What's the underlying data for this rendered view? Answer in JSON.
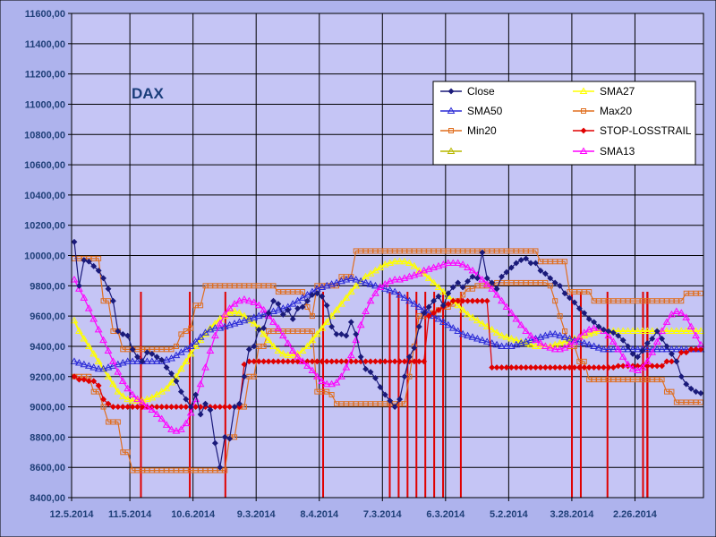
{
  "chart_data": {
    "type": "line",
    "title": "DAX",
    "ylim": [
      8400,
      11600
    ],
    "y_ticks": [
      "8400,00",
      "8600,00",
      "8800,00",
      "9000,00",
      "9200,00",
      "9400,00",
      "9600,00",
      "9800,00",
      "10000,00",
      "10200,00",
      "10400,00",
      "10600,00",
      "10800,00",
      "11000,00",
      "11200,00",
      "11400,00",
      "11600,00"
    ],
    "x_ticks": [
      "12.5.2014",
      "11.5.2014",
      "10.6.2014",
      "9.3.2014",
      "8.4.2014",
      "7.3.2014",
      "6.3.2014",
      "5.2.2014",
      "3.28.2014",
      "2.26.2014"
    ],
    "x_tick_positions": [
      0,
      12,
      25,
      38,
      51,
      64,
      77,
      90,
      103,
      116
    ],
    "n_points": 130,
    "grid": true,
    "legend_placement": "top-right",
    "colors": {
      "plot_background": "#c5c5f5",
      "figure_background": "#aeb3ed",
      "grid": "#000000"
    },
    "series": [
      {
        "name": "Close",
        "color": "#1a1a7a",
        "marker": "diamond",
        "values": [
          10090,
          9800,
          9970,
          9960,
          9930,
          9900,
          9850,
          9780,
          9700,
          9500,
          9480,
          9470,
          9380,
          9330,
          9300,
          9360,
          9350,
          9330,
          9310,
          9260,
          9220,
          9170,
          9100,
          9050,
          9000,
          9080,
          8950,
          9020,
          8980,
          8760,
          8600,
          8800,
          8790,
          9000,
          9020,
          9200,
          9380,
          9400,
          9510,
          9520,
          9620,
          9700,
          9680,
          9610,
          9640,
          9580,
          9650,
          9660,
          9700,
          9740,
          9750,
          9730,
          9670,
          9530,
          9480,
          9480,
          9470,
          9560,
          9480,
          9330,
          9250,
          9230,
          9190,
          9130,
          9080,
          9040,
          9000,
          9050,
          9200,
          9330,
          9390,
          9530,
          9620,
          9660,
          9700,
          9730,
          9670,
          9750,
          9790,
          9820,
          9790,
          9830,
          9860,
          9850,
          10020,
          9850,
          9820,
          9780,
          9860,
          9890,
          9920,
          9950,
          9970,
          9980,
          9950,
          9950,
          9900,
          9880,
          9850,
          9820,
          9800,
          9750,
          9720,
          9690,
          9650,
          9620,
          9580,
          9560,
          9530,
          9510,
          9500,
          9490,
          9470,
          9440,
          9400,
          9350,
          9330,
          9370,
          9420,
          9450,
          9500,
          9450,
          9400,
          9350,
          9300,
          9200,
          9150,
          9120,
          9100,
          9090
        ]
      },
      {
        "name": "SMA50",
        "color": "#2a2ad6",
        "marker": "triangle",
        "values": [
          9300,
          9290,
          9280,
          9270,
          9260,
          9250,
          9250,
          9260,
          9270,
          9280,
          9290,
          9300,
          9300,
          9300,
          9300,
          9300,
          9300,
          9300,
          9300,
          9310,
          9320,
          9340,
          9360,
          9380,
          9400,
          9430,
          9460,
          9490,
          9510,
          9520,
          9520,
          9530,
          9540,
          9550,
          9560,
          9570,
          9580,
          9590,
          9600,
          9610,
          9620,
          9630,
          9640,
          9650,
          9660,
          9680,
          9700,
          9720,
          9740,
          9760,
          9780,
          9790,
          9800,
          9810,
          9820,
          9830,
          9840,
          9850,
          9840,
          9830,
          9820,
          9810,
          9800,
          9790,
          9780,
          9770,
          9760,
          9740,
          9720,
          9700,
          9680,
          9660,
          9640,
          9620,
          9600,
          9580,
          9560,
          9540,
          9520,
          9500,
          9480,
          9470,
          9460,
          9450,
          9440,
          9430,
          9420,
          9410,
          9400,
          9400,
          9400,
          9410,
          9420,
          9430,
          9440,
          9450,
          9460,
          9470,
          9480,
          9480,
          9470,
          9460,
          9450,
          9440,
          9430,
          9420,
          9410,
          9400,
          9390,
          9380,
          9380,
          9380,
          9380,
          9380,
          9380,
          9380,
          9380,
          9380,
          9380,
          9380,
          9380,
          9380,
          9380,
          9380,
          9380,
          9380,
          9380,
          9380,
          9380,
          9380
        ]
      },
      {
        "name": "Min20",
        "color": "#e06e1e",
        "marker": "square",
        "values": [
          9200,
          9200,
          9200,
          9200,
          9100,
          9100,
          9000,
          8900,
          8900,
          8900,
          8700,
          8700,
          8580,
          8580,
          8580,
          8580,
          8580,
          8580,
          8580,
          8580,
          8580,
          8580,
          8580,
          8580,
          8580,
          8580,
          8580,
          8580,
          8580,
          8580,
          8580,
          8580,
          8800,
          8800,
          9000,
          9000,
          9200,
          9200,
          9400,
          9400,
          9500,
          9500,
          9500,
          9500,
          9500,
          9500,
          9500,
          9500,
          9500,
          9500,
          9100,
          9100,
          9100,
          9080,
          9020,
          9020,
          9020,
          9020,
          9020,
          9020,
          9020,
          9020,
          9020,
          9020,
          9020,
          9020,
          9020,
          9020,
          9020,
          9200,
          9400,
          9600,
          9600,
          9620,
          9620,
          9640,
          9660,
          9660,
          9680,
          9700,
          9740,
          9780,
          9780,
          9800,
          9800,
          9800,
          9810,
          9820,
          9820,
          9820,
          9820,
          9820,
          9820,
          9820,
          9820,
          9820,
          9820,
          9820,
          9800,
          9700,
          9600,
          9500,
          9400,
          9400,
          9300,
          9300,
          9180,
          9180,
          9180,
          9180,
          9180,
          9180,
          9180,
          9180,
          9180,
          9180,
          9180,
          9180,
          9180,
          9180,
          9180,
          9180,
          9100,
          9100,
          9030,
          9030,
          9030,
          9030,
          9030,
          9030
        ]
      },
      {
        "name": "",
        "color": "#b8b800",
        "marker": "triangle",
        "values": []
      },
      {
        "name": "SMA27",
        "color": "#ffff00",
        "marker": "triangle",
        "values": [
          9570,
          9500,
          9450,
          9400,
          9350,
          9300,
          9250,
          9200,
          9150,
          9100,
          9070,
          9050,
          9040,
          9040,
          9040,
          9050,
          9060,
          9080,
          9100,
          9120,
          9160,
          9200,
          9250,
          9300,
          9350,
          9400,
          9440,
          9480,
          9520,
          9550,
          9580,
          9600,
          9620,
          9630,
          9620,
          9600,
          9570,
          9550,
          9520,
          9480,
          9440,
          9400,
          9370,
          9350,
          9340,
          9340,
          9350,
          9370,
          9400,
          9440,
          9480,
          9520,
          9560,
          9600,
          9640,
          9680,
          9720,
          9760,
          9800,
          9830,
          9860,
          9880,
          9900,
          9920,
          9940,
          9950,
          9960,
          9960,
          9960,
          9950,
          9930,
          9900,
          9880,
          9850,
          9820,
          9790,
          9760,
          9730,
          9700,
          9670,
          9640,
          9610,
          9590,
          9570,
          9550,
          9530,
          9510,
          9490,
          9470,
          9460,
          9450,
          9440,
          9430,
          9420,
          9410,
          9400,
          9400,
          9400,
          9400,
          9410,
          9420,
          9430,
          9440,
          9450,
          9460,
          9470,
          9480,
          9490,
          9500,
          9500,
          9500,
          9500,
          9500,
          9500,
          9500,
          9500,
          9500,
          9500,
          9500,
          9500,
          9500,
          9500,
          9500,
          9500,
          9500,
          9500,
          9500,
          9500,
          9500,
          9500
        ]
      },
      {
        "name": "Max20",
        "color": "#e06e1e",
        "marker": "square",
        "values": [
          9980,
          9980,
          9980,
          9980,
          9980,
          9980,
          9700,
          9700,
          9500,
          9500,
          9380,
          9380,
          9380,
          9380,
          9380,
          9380,
          9380,
          9380,
          9380,
          9380,
          9380,
          9400,
          9480,
          9500,
          9520,
          9670,
          9670,
          9800,
          9800,
          9800,
          9800,
          9800,
          9800,
          9800,
          9800,
          9800,
          9800,
          9800,
          9800,
          9800,
          9800,
          9800,
          9760,
          9760,
          9760,
          9760,
          9760,
          9760,
          9660,
          9600,
          9800,
          9800,
          9800,
          9800,
          9800,
          9860,
          9860,
          9860,
          10030,
          10030,
          10030,
          10030,
          10030,
          10030,
          10030,
          10030,
          10030,
          10030,
          10030,
          10030,
          10030,
          10030,
          10030,
          10030,
          10030,
          10030,
          10030,
          10030,
          10030,
          10030,
          10030,
          10030,
          10030,
          10030,
          10030,
          10030,
          10030,
          10030,
          10030,
          10030,
          10030,
          10030,
          10030,
          10030,
          10030,
          10030,
          9960,
          9960,
          9960,
          9960,
          9960,
          9960,
          9760,
          9760,
          9760,
          9760,
          9760,
          9700,
          9700,
          9700,
          9700,
          9700,
          9700,
          9700,
          9700,
          9700,
          9700,
          9700,
          9700,
          9700,
          9700,
          9700,
          9700,
          9700,
          9700,
          9700,
          9750,
          9750,
          9750,
          9750
        ]
      },
      {
        "name": "STOP-LOSSTRAIL",
        "color": "#e00000",
        "marker": "diamond",
        "values": [
          9200,
          9180,
          9180,
          9170,
          9170,
          9140,
          9050,
          9020,
          9000,
          9000,
          9000,
          9000,
          9000,
          9000,
          9000,
          9000,
          9000,
          9000,
          9000,
          9000,
          9000,
          9000,
          9000,
          9000,
          9000,
          9000,
          9000,
          9000,
          9000,
          9000,
          9000,
          9000,
          9000,
          9000,
          9000,
          9280,
          9300,
          9300,
          9300,
          9300,
          9300,
          9300,
          9300,
          9300,
          9300,
          9300,
          9300,
          9300,
          9300,
          9300,
          9300,
          9300,
          9300,
          9300,
          9300,
          9300,
          9300,
          9300,
          9300,
          9300,
          9300,
          9300,
          9300,
          9300,
          9300,
          9300,
          9300,
          9300,
          9300,
          9300,
          9300,
          9300,
          9300,
          9600,
          9620,
          9640,
          9660,
          9680,
          9700,
          9700,
          9700,
          9700,
          9700,
          9700,
          9700,
          9700,
          9260,
          9260,
          9260,
          9260,
          9260,
          9260,
          9260,
          9260,
          9260,
          9260,
          9260,
          9260,
          9260,
          9260,
          9260,
          9260,
          9260,
          9260,
          9260,
          9260,
          9260,
          9260,
          9260,
          9260,
          9260,
          9260,
          9270,
          9270,
          9270,
          9270,
          9270,
          9270,
          9270,
          9270,
          9270,
          9270,
          9300,
          9300,
          9300,
          9360,
          9360,
          9380,
          9380,
          9380
        ]
      },
      {
        "name": "SMA13",
        "color": "#ff00ff",
        "marker": "triangle",
        "values": [
          9840,
          9780,
          9720,
          9650,
          9580,
          9510,
          9440,
          9370,
          9300,
          9230,
          9170,
          9120,
          9080,
          9050,
          9030,
          9000,
          8980,
          8950,
          8920,
          8880,
          8850,
          8840,
          8850,
          8890,
          8960,
          9050,
          9150,
          9260,
          9370,
          9470,
          9550,
          9610,
          9650,
          9680,
          9700,
          9710,
          9700,
          9690,
          9670,
          9640,
          9600,
          9560,
          9520,
          9470,
          9420,
          9370,
          9330,
          9300,
          9270,
          9240,
          9200,
          9170,
          9150,
          9150,
          9160,
          9200,
          9260,
          9340,
          9440,
          9540,
          9630,
          9700,
          9750,
          9790,
          9810,
          9830,
          9840,
          9840,
          9850,
          9860,
          9870,
          9880,
          9900,
          9910,
          9920,
          9930,
          9940,
          9950,
          9950,
          9950,
          9940,
          9920,
          9900,
          9870,
          9840,
          9810,
          9780,
          9740,
          9700,
          9660,
          9620,
          9580,
          9540,
          9500,
          9470,
          9440,
          9420,
          9400,
          9390,
          9380,
          9380,
          9390,
          9410,
          9430,
          9460,
          9490,
          9510,
          9520,
          9520,
          9500,
          9470,
          9430,
          9380,
          9330,
          9280,
          9250,
          9240,
          9260,
          9300,
          9360,
          9430,
          9500,
          9560,
          9610,
          9630,
          9620,
          9590,
          9530,
          9470,
          9410
        ]
      }
    ],
    "exit_signal_lines": {
      "color": "#e00000",
      "indices": [
        15,
        26,
        34,
        56,
        71,
        73,
        75,
        77,
        79,
        81,
        83,
        87,
        112,
        114,
        120,
        128,
        133,
        135,
        137,
        139,
        141
      ]
    }
  }
}
